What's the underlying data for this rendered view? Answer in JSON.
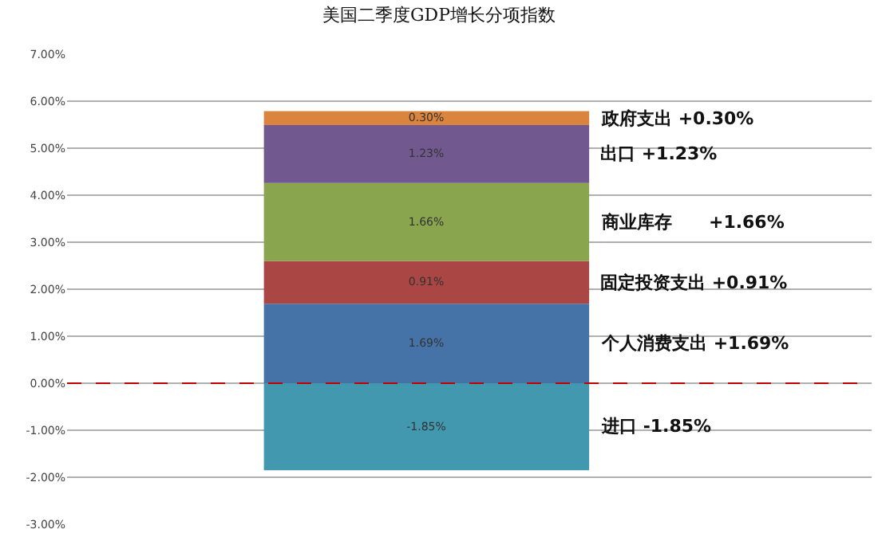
{
  "chart_data": {
    "type": "bar",
    "title": "美国二季度GDP增长分项指数",
    "stacked": true,
    "categories": [
      null
    ],
    "series": [
      {
        "name": "个人消费支出 +1.69%",
        "color": "#4573a7",
        "values": [
          1.69
        ],
        "value_labels": [
          "1.69%"
        ]
      },
      {
        "name": "固定投资支出 +0.91%",
        "color": "#aa4643",
        "values": [
          0.91
        ],
        "value_labels": [
          "0.91%"
        ]
      },
      {
        "name": "商业库存      +1.66%",
        "color": "#89a54e",
        "values": [
          1.66
        ],
        "value_labels": [
          "1.66%"
        ]
      },
      {
        "name": "出口 +1.23%",
        "color": "#71588f",
        "values": [
          1.23
        ],
        "value_labels": [
          "1.23%"
        ]
      },
      {
        "name": "政府支出 +0.30%",
        "color": "#db843d",
        "values": [
          0.3
        ],
        "value_labels": [
          "0.30%"
        ]
      },
      {
        "name": "进口 -1.85%",
        "color": "#4198af",
        "values": [
          -1.85
        ],
        "value_labels": [
          "-1.85%"
        ]
      }
    ],
    "ylim": [
      -3,
      7
    ],
    "yticks": [
      {
        "value": -3,
        "label": "-3.00%"
      },
      {
        "value": -2,
        "label": "-2.00%"
      },
      {
        "value": -1,
        "label": "-1.00%"
      },
      {
        "value": 0,
        "label": "0.00%"
      },
      {
        "value": 1,
        "label": "1.00%"
      },
      {
        "value": 2,
        "label": "2.00%"
      },
      {
        "value": 3,
        "label": "3.00%"
      },
      {
        "value": 4,
        "label": "4.00%"
      },
      {
        "value": 5,
        "label": "5.00%"
      },
      {
        "value": 6,
        "label": "6.00%"
      },
      {
        "value": 7,
        "label": "7.00%"
      }
    ],
    "grid": "y",
    "legend": false,
    "tick_labels": "y",
    "ref_lines": [
      {
        "axis": "y",
        "value": 0,
        "color": "#c00000",
        "line_style": "dashed"
      }
    ]
  }
}
